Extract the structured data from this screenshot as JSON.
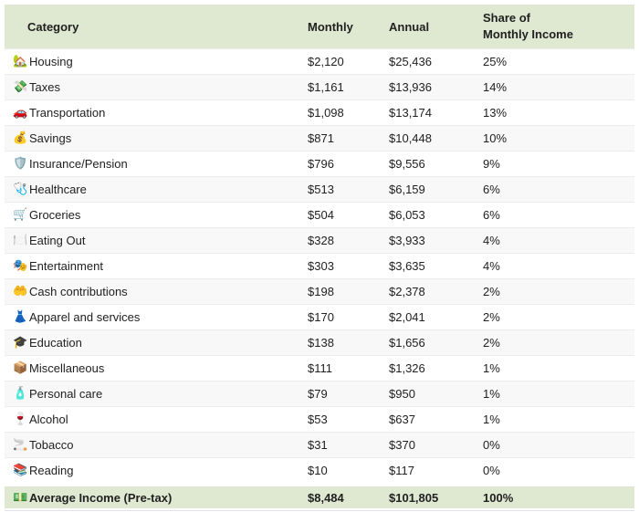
{
  "colors": {
    "header_bg": "#dfe9d1",
    "footer_bg": "#dfe9d1",
    "row_stripe": "#f8f8f8",
    "text": "#212121",
    "divider": "#ececec"
  },
  "table": {
    "headers": {
      "category": "Category",
      "monthly": "Monthly",
      "annual": "Annual",
      "share": "Share of\nMonthly Income"
    },
    "rows": [
      {
        "icon": "🏡",
        "icon_name": "house-icon",
        "label": "Housing",
        "monthly": "$2,120",
        "annual": "$25,436",
        "share": "25%"
      },
      {
        "icon": "💸",
        "icon_name": "money-with-wings-icon",
        "label": "Taxes",
        "monthly": "$1,161",
        "annual": "$13,936",
        "share": "14%"
      },
      {
        "icon": "🚗",
        "icon_name": "car-icon",
        "label": "Transportation",
        "monthly": "$1,098",
        "annual": "$13,174",
        "share": "13%"
      },
      {
        "icon": "💰",
        "icon_name": "money-bag-icon",
        "label": "Savings",
        "monthly": "$871",
        "annual": "$10,448",
        "share": "10%"
      },
      {
        "icon": "🛡️",
        "icon_name": "shield-icon",
        "label": "Insurance/Pension",
        "monthly": "$796",
        "annual": "$9,556",
        "share": "9%"
      },
      {
        "icon": "🩺",
        "icon_name": "stethoscope-icon",
        "label": "Healthcare",
        "monthly": "$513",
        "annual": "$6,159",
        "share": "6%"
      },
      {
        "icon": "🛒",
        "icon_name": "shopping-cart-icon",
        "label": "Groceries",
        "monthly": "$504",
        "annual": "$6,053",
        "share": "6%"
      },
      {
        "icon": "🍽️",
        "icon_name": "fork-knife-plate-icon",
        "label": "Eating Out",
        "monthly": "$328",
        "annual": "$3,933",
        "share": "4%"
      },
      {
        "icon": "🎭",
        "icon_name": "performing-arts-icon",
        "label": "Entertainment",
        "monthly": "$303",
        "annual": "$3,635",
        "share": "4%"
      },
      {
        "icon": "🤲",
        "icon_name": "open-palms-icon",
        "label": "Cash contributions",
        "monthly": "$198",
        "annual": "$2,378",
        "share": "2%"
      },
      {
        "icon": "👗",
        "icon_name": "dress-icon",
        "label": "Apparel and services",
        "monthly": "$170",
        "annual": "$2,041",
        "share": "2%"
      },
      {
        "icon": "🎓",
        "icon_name": "graduation-cap-icon",
        "label": "Education",
        "monthly": "$138",
        "annual": "$1,656",
        "share": "2%"
      },
      {
        "icon": "📦",
        "icon_name": "package-icon",
        "label": "Miscellaneous",
        "monthly": "$111",
        "annual": "$1,326",
        "share": "1%"
      },
      {
        "icon": "🧴",
        "icon_name": "lotion-bottle-icon",
        "label": "Personal care",
        "monthly": "$79",
        "annual": "$950",
        "share": "1%"
      },
      {
        "icon": "🍷",
        "icon_name": "wine-glass-icon",
        "label": "Alcohol",
        "monthly": "$53",
        "annual": "$637",
        "share": "1%"
      },
      {
        "icon": "🚬",
        "icon_name": "cigarette-icon",
        "label": "Tobacco",
        "monthly": "$31",
        "annual": "$370",
        "share": "0%"
      },
      {
        "icon": "📚",
        "icon_name": "books-icon",
        "label": "Reading",
        "monthly": "$10",
        "annual": "$117",
        "share": "0%"
      }
    ],
    "footer": {
      "icon": "💵",
      "icon_name": "dollar-banknote-icon",
      "label": "Average Income (Pre-tax)",
      "monthly": "$8,484",
      "annual": "$101,805",
      "share": "100%"
    }
  }
}
